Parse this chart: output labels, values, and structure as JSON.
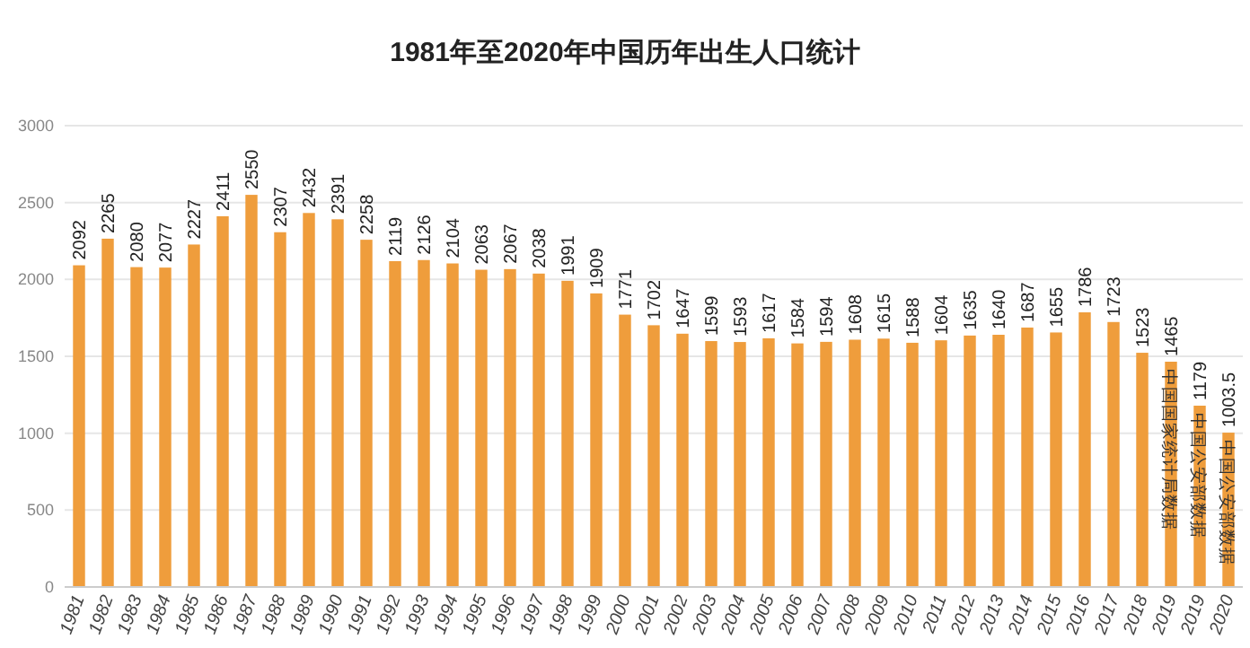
{
  "chart_data": {
    "type": "bar",
    "title": "1981年至2020年中国历年出生人口统计",
    "categories": [
      "1981",
      "1982",
      "1983",
      "1984",
      "1985",
      "1986",
      "1987",
      "1988",
      "1989",
      "1990",
      "1991",
      "1992",
      "1993",
      "1994",
      "1995",
      "1996",
      "1997",
      "1998",
      "1999",
      "2000",
      "2001",
      "2002",
      "2003",
      "2004",
      "2005",
      "2006",
      "2007",
      "2008",
      "2009",
      "2010",
      "2011",
      "2012",
      "2013",
      "2014",
      "2015",
      "2016",
      "2017",
      "2018",
      "2019",
      "2019",
      "2020"
    ],
    "values": [
      2092,
      2265,
      2080,
      2077,
      2227,
      2411,
      2550,
      2307,
      2432,
      2391,
      2258,
      2119,
      2126,
      2104,
      2063,
      2067,
      2038,
      1991,
      1909,
      1771,
      1702,
      1647,
      1599,
      1593,
      1617,
      1584,
      1594,
      1608,
      1615,
      1588,
      1604,
      1635,
      1640,
      1687,
      1655,
      1786,
      1723,
      1523,
      1465,
      1179,
      1003.5
    ],
    "color": "#ef9d3c",
    "data_labels": true,
    "ylim": [
      0,
      3000
    ],
    "yticks": [
      0,
      500,
      1000,
      1500,
      2000,
      2500,
      3000
    ],
    "grid": "y",
    "annotations": [
      {
        "text": "中国国家统计局数据",
        "x": "2019",
        "y": 1465
      },
      {
        "text": "中国公安部数据",
        "x": "2019",
        "y": 1179
      },
      {
        "text": "中国公安部数据",
        "x": "2020",
        "y": 1003.5
      }
    ]
  }
}
